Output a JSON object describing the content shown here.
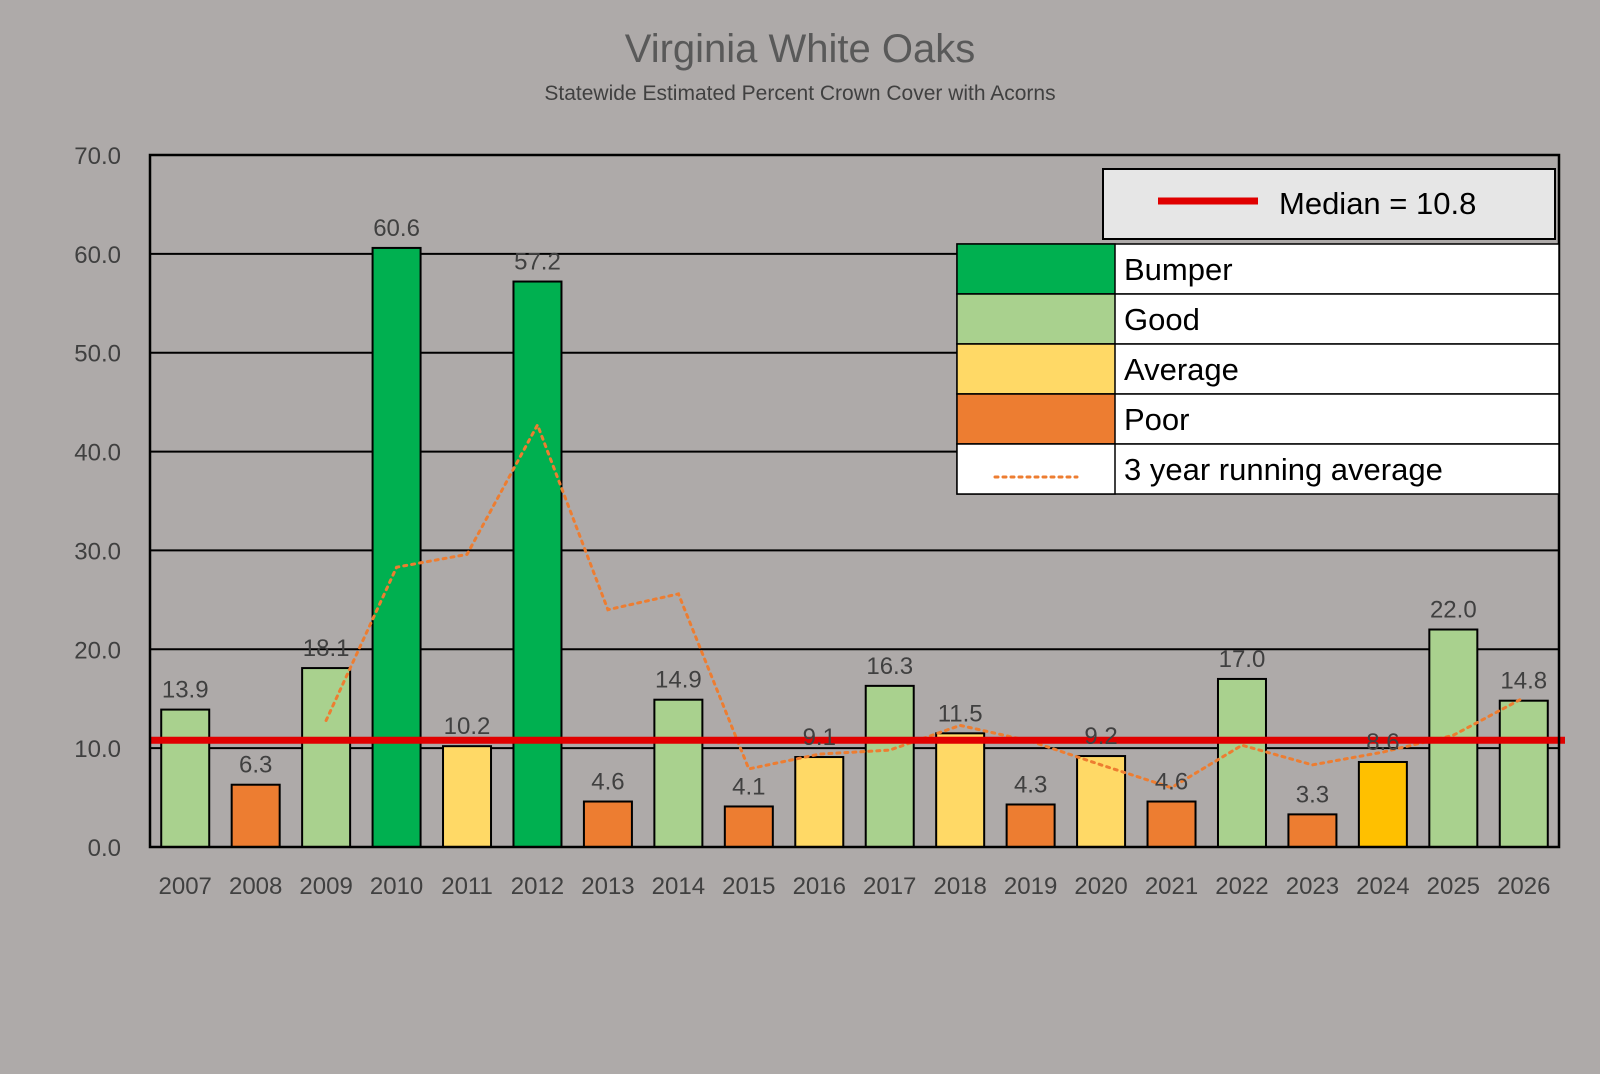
{
  "chart_data": {
    "type": "bar",
    "title": "Virginia White Oaks",
    "subtitle": "Statewide Estimated Percent Crown Cover with Acorns",
    "xlabel": "",
    "ylabel": "",
    "ylim": [
      0,
      70
    ],
    "yticks": [
      "0.0",
      "10.0",
      "20.0",
      "30.0",
      "40.0",
      "50.0",
      "60.0",
      "70.0"
    ],
    "grid": true,
    "categories": [
      "2007",
      "2008",
      "2009",
      "2010",
      "2011",
      "2012",
      "2013",
      "2014",
      "2015",
      "2016",
      "2017",
      "2018",
      "2019",
      "2020",
      "2021",
      "2022",
      "2023",
      "2024",
      "2025",
      "2026"
    ],
    "values": [
      13.9,
      6.3,
      18.1,
      60.6,
      10.2,
      57.2,
      4.6,
      14.9,
      4.1,
      9.1,
      16.3,
      11.5,
      4.3,
      9.2,
      4.6,
      17.0,
      3.3,
      8.6,
      22.0,
      14.8
    ],
    "value_labels": [
      "13.9",
      "6.3",
      "18.1",
      "60.6",
      "10.2",
      "57.2",
      "4.6",
      "14.9",
      "4.1",
      "9.1",
      "16.3",
      "11.5",
      "4.3",
      "9.2",
      "4.6",
      "17.0",
      "3.3",
      "8.6",
      "22.0",
      "14.8"
    ],
    "classes": [
      "good",
      "poor",
      "good",
      "bumper",
      "average",
      "bumper",
      "poor",
      "good",
      "poor",
      "average",
      "good",
      "average",
      "poor",
      "average",
      "poor",
      "good",
      "poor",
      "average-highlight",
      "good",
      "good"
    ],
    "running_average": [
      null,
      null,
      12.8,
      28.3,
      29.6,
      42.7,
      24.0,
      25.6,
      7.9,
      9.4,
      9.8,
      12.3,
      10.7,
      8.3,
      6.0,
      10.3,
      8.3,
      9.6,
      11.3,
      15.1
    ],
    "median": 10.8,
    "legend": {
      "placement": "top-right",
      "median_label": "Median = 10.8",
      "items": [
        {
          "key": "bumper",
          "label": "Bumper"
        },
        {
          "key": "good",
          "label": "Good"
        },
        {
          "key": "average",
          "label": "Average"
        },
        {
          "key": "poor",
          "label": "Poor"
        },
        {
          "key": "running",
          "label": "3 year running average"
        }
      ]
    },
    "colors": {
      "bumper": "#00b050",
      "good": "#a9d18e",
      "average": "#ffd966",
      "average-highlight": "#ffc000",
      "poor": "#ed7d31",
      "running": "#ed7d31",
      "median": "#e00000",
      "background": "#aeaaa9"
    }
  }
}
